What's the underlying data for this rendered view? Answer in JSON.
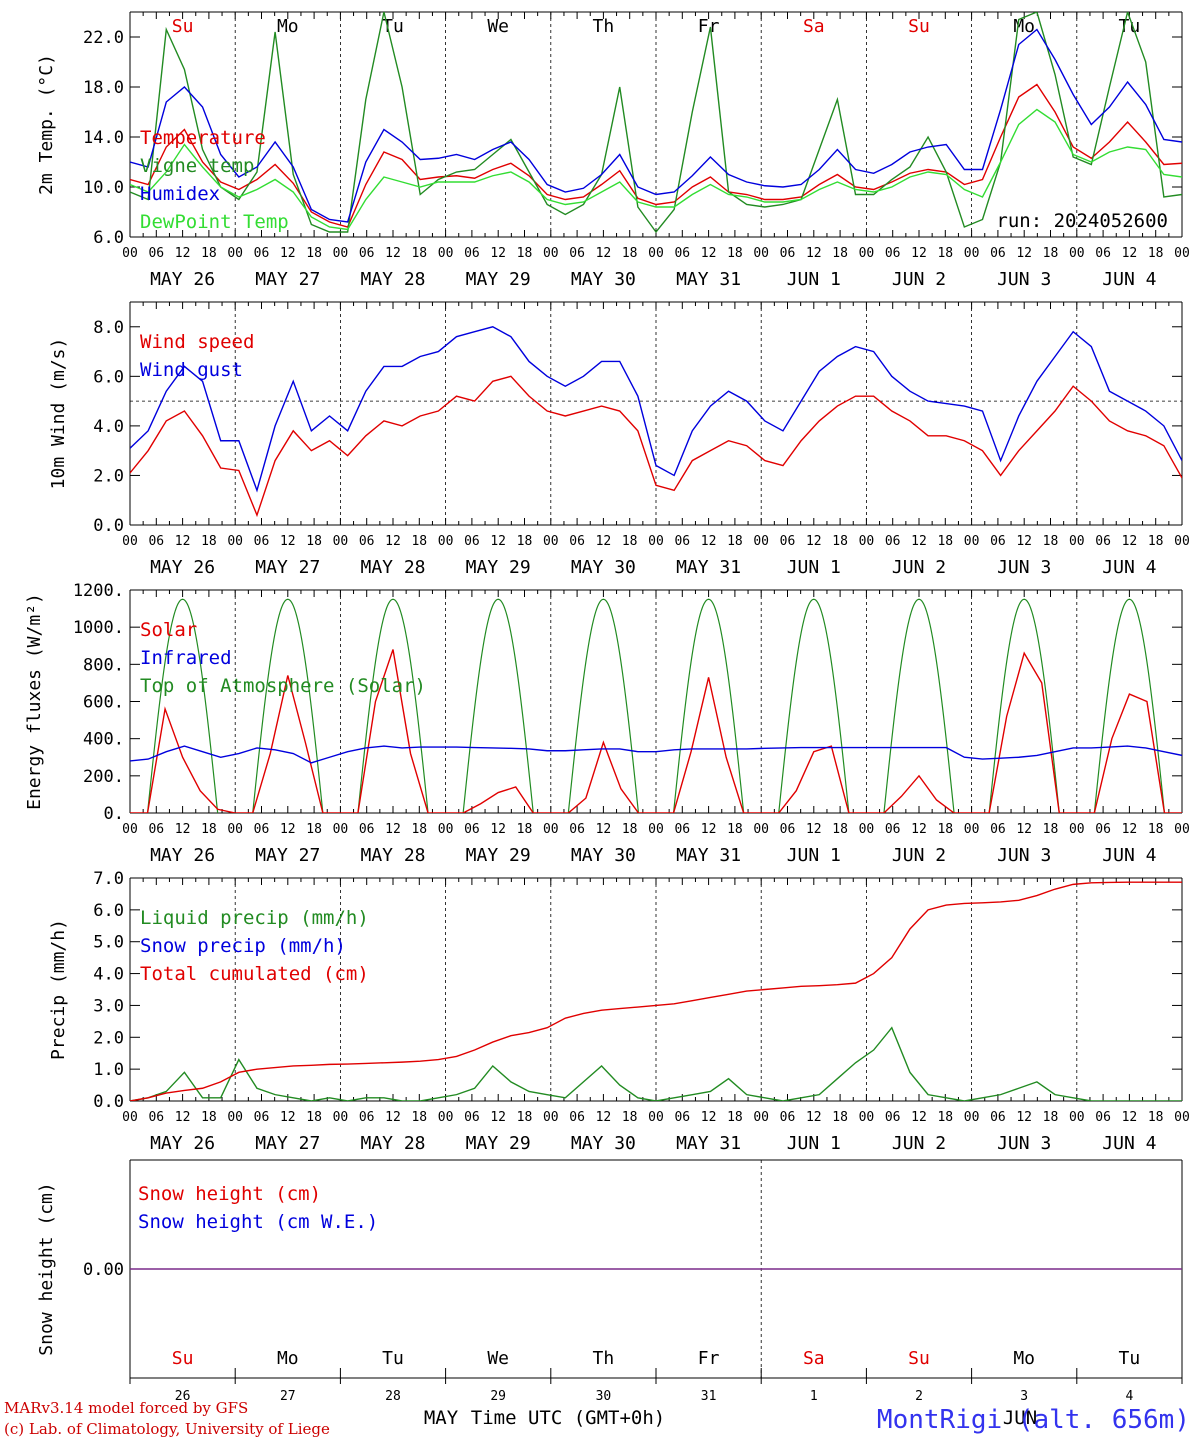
{
  "days_of_week": [
    "Su",
    "Mo",
    "Tu",
    "We",
    "Th",
    "Fr",
    "Sa",
    "Su",
    "Mo",
    "Tu"
  ],
  "days_of_week_colors": [
    "#e00000",
    "#000000",
    "#000000",
    "#000000",
    "#000000",
    "#000000",
    "#e00000",
    "#e00000",
    "#000000",
    "#000000"
  ],
  "date_labels": [
    "MAY 26",
    "MAY 27",
    "MAY 28",
    "MAY 29",
    "MAY 30",
    "MAY 31",
    "JUN  1",
    "JUN  2",
    "JUN  3",
    "JUN  4"
  ],
  "hour_ticks": [
    "00",
    "06",
    "12",
    "18"
  ],
  "hour_tick_end": "00",
  "snow_day_numbers": [
    "26",
    "27",
    "28",
    "29",
    "30",
    "31",
    "1",
    "2",
    "3",
    "4"
  ],
  "month_labels": {
    "may": "MAY",
    "jun": "JUN"
  },
  "x_title": "Time UTC (GMT+0h)",
  "footer": {
    "line1": "MARv3.14 model forced by GFS",
    "line2": "(c) Lab. of Climatology, University of Liege"
  },
  "station": "MontRigi (alt. 656m)",
  "run_label": "run: 2024052600",
  "chart_data": [
    {
      "type": "line",
      "id": "temp",
      "ylabel": "2m Temp. (°C)",
      "ylim": [
        6,
        24
      ],
      "yticks": [
        "6.0",
        "10.0",
        "14.0",
        "18.0",
        "22.0"
      ],
      "legend": [
        {
          "name": "Temperature",
          "color": "#e00000"
        },
        {
          "name": "Vigne temp",
          "color": "#228b22"
        },
        {
          "name": "Humidex",
          "color": "#0000dd"
        },
        {
          "name": "DewPoint Temp",
          "color": "#33dd33"
        }
      ],
      "series": [
        {
          "name": "Temperature",
          "color": "#e00000",
          "values": [
            10.6,
            10.2,
            13.2,
            14.6,
            12.0,
            10.4,
            9.8,
            10.6,
            11.8,
            10.3,
            8.0,
            7.2,
            6.8,
            10.2,
            12.8,
            12.2,
            10.6,
            10.8,
            10.9,
            10.7,
            11.4,
            11.9,
            10.9,
            9.4,
            9.0,
            9.2,
            10.2,
            11.3,
            9.1,
            8.6,
            8.8,
            10.0,
            10.8,
            9.6,
            9.4,
            9.0,
            9.0,
            9.2,
            10.2,
            11.0,
            10.0,
            9.8,
            10.4,
            11.1,
            11.4,
            11.2,
            10.2,
            10.6,
            14.0,
            17.2,
            18.2,
            16.0,
            13.2,
            12.3,
            13.6,
            15.2,
            13.6,
            11.8,
            11.9
          ]
        },
        {
          "name": "Vigne temp",
          "color": "#228b22",
          "values": [
            9.6,
            9.0,
            22.6,
            19.4,
            13.0,
            10.0,
            9.0,
            11.2,
            22.4,
            11.0,
            7.0,
            6.4,
            6.4,
            17.0,
            24.0,
            18.0,
            9.4,
            10.6,
            11.2,
            11.4,
            12.6,
            13.8,
            11.2,
            8.6,
            7.8,
            8.6,
            11.0,
            18.0,
            8.4,
            6.4,
            8.2,
            16.0,
            22.8,
            9.6,
            8.6,
            8.4,
            8.6,
            9.0,
            13.0,
            17.0,
            9.4,
            9.4,
            10.6,
            11.6,
            14.0,
            11.2,
            6.8,
            7.4,
            12.0,
            23.4,
            24.0,
            19.0,
            12.4,
            11.8,
            18.0,
            24.0,
            20.0,
            9.2,
            9.4
          ]
        },
        {
          "name": "Humidex",
          "color": "#0000dd",
          "values": [
            12.0,
            11.6,
            16.8,
            18.0,
            16.4,
            12.6,
            10.8,
            11.6,
            13.6,
            11.6,
            8.2,
            7.4,
            7.2,
            12.0,
            14.6,
            13.6,
            12.2,
            12.3,
            12.6,
            12.2,
            13.0,
            13.6,
            12.2,
            10.2,
            9.6,
            9.9,
            11.0,
            12.6,
            10.0,
            9.4,
            9.6,
            10.9,
            12.4,
            11.0,
            10.4,
            10.1,
            10.0,
            10.2,
            11.4,
            13.0,
            11.4,
            11.1,
            11.8,
            12.8,
            13.2,
            13.4,
            11.4,
            11.4,
            16.2,
            21.4,
            22.6,
            20.2,
            17.4,
            15.0,
            16.4,
            18.4,
            16.6,
            13.8,
            13.6
          ]
        },
        {
          "name": "DewPoint Temp",
          "color": "#33dd33",
          "values": [
            10.2,
            9.6,
            11.2,
            13.4,
            11.6,
            10.0,
            9.2,
            9.8,
            10.6,
            9.6,
            7.6,
            6.8,
            6.6,
            9.0,
            10.8,
            10.4,
            10.0,
            10.4,
            10.4,
            10.4,
            10.9,
            11.2,
            10.4,
            9.0,
            8.6,
            8.8,
            9.6,
            10.4,
            8.8,
            8.4,
            8.4,
            9.4,
            10.2,
            9.4,
            9.2,
            8.8,
            8.8,
            9.0,
            9.8,
            10.4,
            9.8,
            9.6,
            10.0,
            10.8,
            11.2,
            11.0,
            9.8,
            9.2,
            12.0,
            15.0,
            16.2,
            15.2,
            12.6,
            12.0,
            12.8,
            13.2,
            13.0,
            11.0,
            10.8
          ]
        }
      ]
    },
    {
      "type": "line",
      "id": "wind",
      "ylabel": "10m Wind (m/s)",
      "ylim": [
        0,
        9
      ],
      "yticks": [
        "0.0",
        "2.0",
        "4.0",
        "6.0",
        "8.0"
      ],
      "reference_line": 5,
      "legend": [
        {
          "name": "Wind speed",
          "color": "#e00000"
        },
        {
          "name": "Wind gust",
          "color": "#0000dd"
        }
      ],
      "series": [
        {
          "name": "Wind speed",
          "color": "#e00000",
          "values": [
            2.1,
            3.0,
            4.2,
            4.6,
            3.6,
            2.3,
            2.2,
            0.4,
            2.6,
            3.8,
            3.0,
            3.4,
            2.8,
            3.6,
            4.2,
            4.0,
            4.4,
            4.6,
            5.2,
            5.0,
            5.8,
            6.0,
            5.2,
            4.6,
            4.4,
            4.6,
            4.8,
            4.6,
            3.8,
            1.6,
            1.4,
            2.6,
            3.0,
            3.4,
            3.2,
            2.6,
            2.4,
            3.4,
            4.2,
            4.8,
            5.2,
            5.2,
            4.6,
            4.2,
            3.6,
            3.6,
            3.4,
            3.0,
            2.0,
            3.0,
            3.8,
            4.6,
            5.6,
            5.0,
            4.2,
            3.8,
            3.6,
            3.2,
            1.9
          ]
        },
        {
          "name": "Wind gust",
          "color": "#0000dd",
          "values": [
            3.1,
            3.8,
            5.4,
            6.4,
            5.8,
            3.4,
            3.4,
            1.4,
            4.0,
            5.8,
            3.8,
            4.4,
            3.8,
            5.4,
            6.4,
            6.4,
            6.8,
            7.0,
            7.6,
            7.8,
            8.0,
            7.6,
            6.6,
            6.0,
            5.6,
            6.0,
            6.6,
            6.6,
            5.2,
            2.4,
            2.0,
            3.8,
            4.8,
            5.4,
            5.0,
            4.2,
            3.8,
            5.0,
            6.2,
            6.8,
            7.2,
            7.0,
            6.0,
            5.4,
            5.0,
            4.9,
            4.8,
            4.6,
            2.6,
            4.4,
            5.8,
            6.8,
            7.8,
            7.2,
            5.4,
            5.0,
            4.6,
            4.0,
            2.6
          ]
        }
      ]
    },
    {
      "type": "line",
      "id": "energy",
      "ylabel": "Energy fluxes (W/m²)",
      "ylim": [
        0,
        1200
      ],
      "yticks": [
        "0.",
        "200.",
        "400.",
        "600.",
        "800.",
        "1000.",
        "1200."
      ],
      "legend": [
        {
          "name": "Solar",
          "color": "#e00000"
        },
        {
          "name": "Infrared",
          "color": "#0000dd"
        },
        {
          "name": "Top of Atmosphere (Solar)",
          "color": "#228b22"
        }
      ],
      "toa_peak": 1150,
      "solar_daily": [
        [
          0,
          560,
          300,
          120,
          20
        ],
        [
          0,
          320,
          740,
          380,
          0
        ],
        [
          0,
          600,
          880,
          320,
          0
        ],
        [
          0,
          50,
          110,
          140,
          0
        ],
        [
          0,
          80,
          380,
          130,
          0
        ],
        [
          0,
          330,
          730,
          300,
          0
        ],
        [
          0,
          120,
          330,
          360,
          0
        ],
        [
          0,
          90,
          200,
          70,
          0
        ],
        [
          0,
          520,
          860,
          700,
          0
        ],
        [
          0,
          400,
          640,
          600,
          0
        ]
      ],
      "series": [
        {
          "name": "Infrared",
          "color": "#0000dd",
          "values": [
            280,
            290,
            330,
            360,
            330,
            300,
            320,
            350,
            340,
            320,
            270,
            300,
            330,
            350,
            360,
            350,
            355,
            355,
            355,
            352,
            350,
            348,
            345,
            335,
            335,
            340,
            345,
            345,
            330,
            330,
            340,
            345,
            345,
            345,
            345,
            348,
            350,
            352,
            352,
            352,
            352,
            352,
            352,
            352,
            352,
            352,
            300,
            290,
            295,
            300,
            310,
            330,
            350,
            350,
            355,
            360,
            350,
            330,
            310
          ]
        }
      ]
    },
    {
      "type": "line",
      "id": "precip",
      "ylabel": "Precip (mm/h)",
      "ylim": [
        0,
        7
      ],
      "yticks": [
        "0.0",
        "1.0",
        "2.0",
        "3.0",
        "4.0",
        "5.0",
        "6.0",
        "7.0"
      ],
      "legend": [
        {
          "name": "Liquid precip (mm/h)",
          "color": "#228b22"
        },
        {
          "name": "Snow precip (mm/h)",
          "color": "#0000dd"
        },
        {
          "name": "Total cumulated (cm)",
          "color": "#e00000"
        }
      ],
      "series": [
        {
          "name": "Liquid precip (mm/h)",
          "color": "#228b22",
          "values": [
            0,
            0.1,
            0.3,
            0.9,
            0.1,
            0.1,
            1.3,
            0.4,
            0.2,
            0.1,
            0,
            0.1,
            0,
            0.1,
            0.1,
            0,
            0,
            0.1,
            0.2,
            0.4,
            1.1,
            0.6,
            0.3,
            0.2,
            0.1,
            0.6,
            1.1,
            0.5,
            0.1,
            0,
            0.1,
            0.2,
            0.3,
            0.7,
            0.2,
            0.1,
            0,
            0.1,
            0.2,
            0.7,
            1.2,
            1.6,
            2.3,
            0.9,
            0.2,
            0.1,
            0,
            0.1,
            0.2,
            0.4,
            0.6,
            0.2,
            0.1,
            0,
            0,
            0,
            0,
            0,
            0
          ]
        },
        {
          "name": "Total cumulated (cm)",
          "color": "#e00000",
          "values": [
            0,
            0.1,
            0.25,
            0.33,
            0.4,
            0.6,
            0.9,
            1.0,
            1.05,
            1.1,
            1.12,
            1.15,
            1.16,
            1.18,
            1.2,
            1.22,
            1.25,
            1.3,
            1.4,
            1.6,
            1.85,
            2.05,
            2.15,
            2.3,
            2.6,
            2.75,
            2.85,
            2.9,
            2.95,
            3.0,
            3.05,
            3.15,
            3.25,
            3.35,
            3.45,
            3.5,
            3.55,
            3.6,
            3.62,
            3.65,
            3.7,
            4.0,
            4.5,
            5.4,
            6.0,
            6.15,
            6.2,
            6.22,
            6.25,
            6.3,
            6.45,
            6.65,
            6.8,
            6.85,
            6.86,
            6.87,
            6.87,
            6.87,
            6.87
          ]
        }
      ]
    },
    {
      "type": "line",
      "id": "snow",
      "ylabel": "Snow height (cm)",
      "ylim": [
        -1,
        1
      ],
      "yticks": [
        "0.00"
      ],
      "legend": [
        {
          "name": "Snow height (cm)",
          "color": "#e00000"
        },
        {
          "name": "Snow height (cm W.E.)",
          "color": "#0000dd"
        }
      ],
      "series": [
        {
          "name": "Snow height (cm)",
          "color": "#7a2a8a",
          "values": [
            0,
            0
          ]
        }
      ]
    }
  ]
}
